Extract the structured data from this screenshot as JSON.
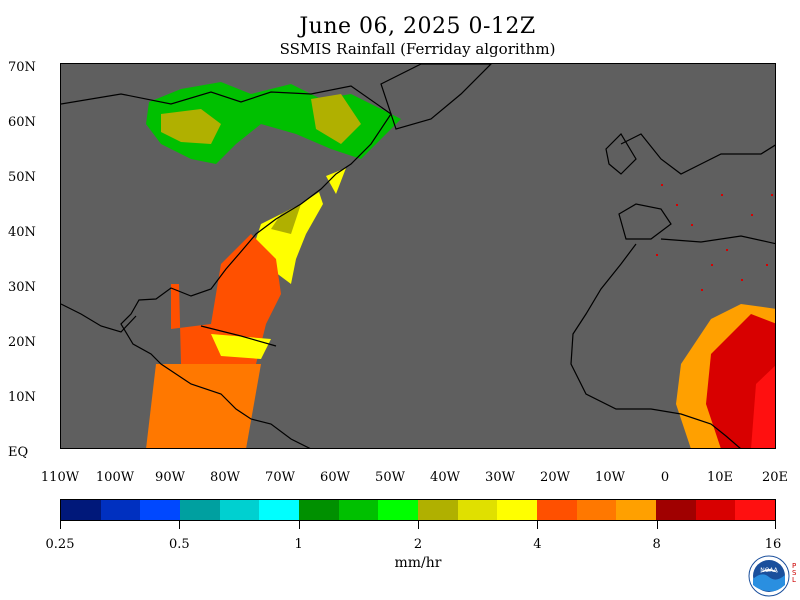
{
  "header": {
    "title": "June 06, 2025 0-12Z",
    "subtitle": "SSMIS Rainfall (Ferriday algorithm)"
  },
  "map": {
    "lat_labels": [
      "70N",
      "60N",
      "50N",
      "40N",
      "30N",
      "20N",
      "10N",
      "EQ"
    ],
    "lon_labels": [
      "110W",
      "100W",
      "90W",
      "80W",
      "70W",
      "60W",
      "50W",
      "40W",
      "30W",
      "20W",
      "10W",
      "0",
      "10E",
      "20E"
    ],
    "background_color": "#5f5f5f"
  },
  "colorbar": {
    "colors": [
      "#00187a",
      "#0030c0",
      "#0048ff",
      "#00a0a0",
      "#00d0d0",
      "#00ffff",
      "#009000",
      "#00c000",
      "#00ff00",
      "#b0b000",
      "#e0e000",
      "#ffff00",
      "#ff5000",
      "#ff7800",
      "#ffa000",
      "#a00000",
      "#d80000",
      "#ff1010"
    ],
    "tick_labels": [
      "0.25",
      "0.5",
      "1",
      "2",
      "4",
      "8",
      "16"
    ],
    "units": "mm/hr"
  },
  "logo": {
    "name": "noaa-logo",
    "text": "NOAA",
    "side_text": "P\nS\nL"
  }
}
